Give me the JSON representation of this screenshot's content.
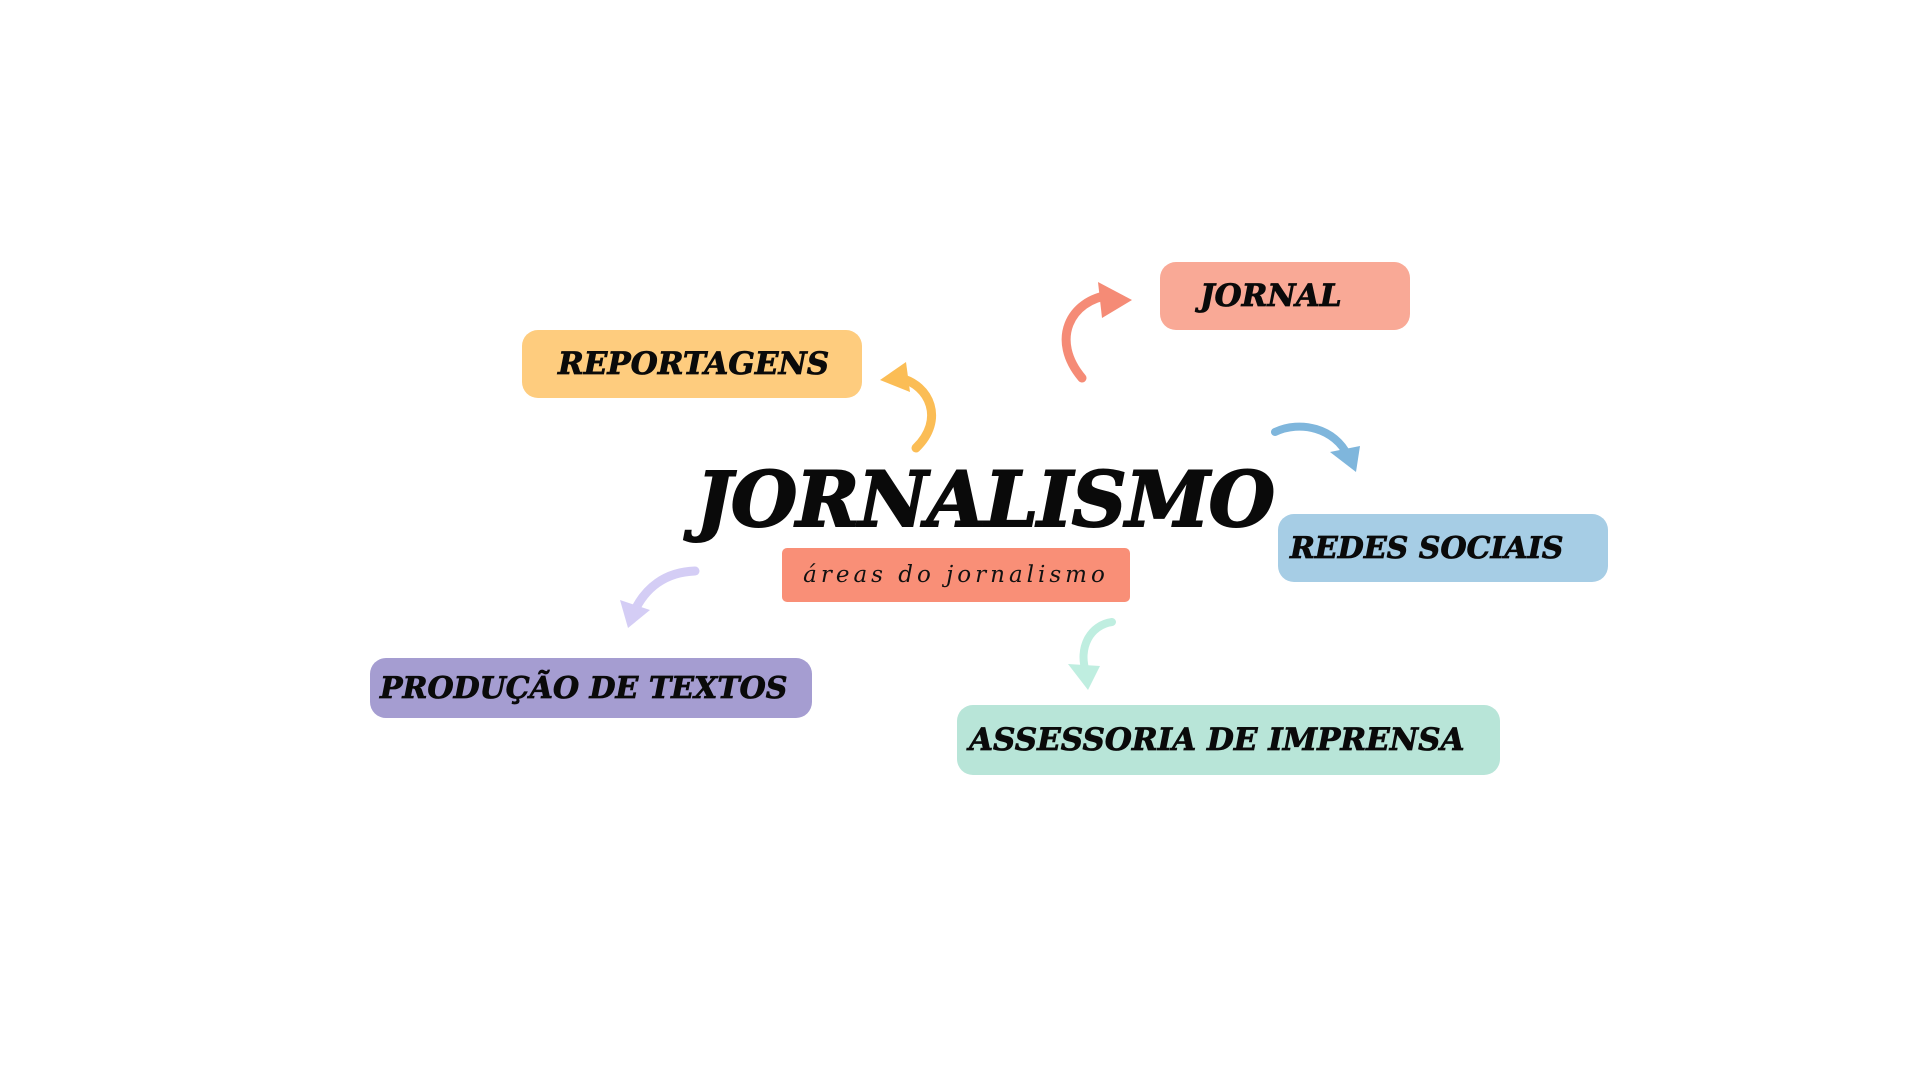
{
  "title": "JORNALISMO",
  "subtitle": "áreas do jornalismo",
  "colors": {
    "subtitle_bg": "#f98f77",
    "jornal": "#f9a996",
    "reportagens": "#fecc7e",
    "redes_sociais": "#a6cde5",
    "producao": "#a59dd1",
    "assessoria": "#b8e5d8",
    "arrow_jornal": "#f58b76",
    "arrow_reportagens": "#fbbd55",
    "arrow_redes": "#7fb6dc",
    "arrow_producao": "#d4cdf5",
    "arrow_assessoria": "#bfeee0"
  },
  "nodes": {
    "jornal": "JORNAL",
    "reportagens": "REPORTAGENS",
    "redes_sociais": "REDES SOCIAIS",
    "producao": "PRODUÇÃO DE TEXTOS",
    "assessoria": "ASSESSORIA DE IMPRENSA"
  },
  "icons": {
    "arrow_jornal": "curved-arrow-up-right-icon",
    "arrow_reportagens": "curved-arrow-up-left-icon",
    "arrow_redes": "curved-arrow-down-right-icon",
    "arrow_producao": "curved-arrow-down-left-icon",
    "arrow_assessoria": "curved-arrow-down-icon"
  }
}
